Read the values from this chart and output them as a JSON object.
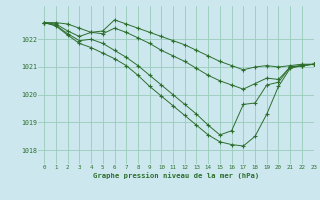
{
  "background_color": "#cce8ee",
  "grid_color": "#99ccbb",
  "line_color": "#2d6e2d",
  "title": "Graphe pression niveau de la mer (hPa)",
  "xlim": [
    -0.5,
    23
  ],
  "ylim": [
    1017.5,
    1023.2
  ],
  "yticks": [
    1018,
    1019,
    1020,
    1021,
    1022
  ],
  "xticks": [
    0,
    1,
    2,
    3,
    4,
    5,
    6,
    7,
    8,
    9,
    10,
    11,
    12,
    13,
    14,
    15,
    16,
    17,
    18,
    19,
    20,
    21,
    22,
    23
  ],
  "line1_x": [
    0,
    1,
    2,
    3,
    4,
    5,
    6,
    7,
    8,
    9,
    10,
    11,
    12,
    13,
    14,
    15,
    16,
    17,
    18,
    19,
    20,
    21,
    22,
    23
  ],
  "line1_y": [
    1022.6,
    1022.6,
    1022.55,
    1022.4,
    1022.25,
    1022.3,
    1022.7,
    1022.55,
    1022.4,
    1022.25,
    1022.1,
    1021.95,
    1021.8,
    1021.6,
    1021.4,
    1021.2,
    1021.05,
    1020.9,
    1021.0,
    1021.05,
    1021.0,
    1021.05,
    1021.1,
    1021.1
  ],
  "line2_x": [
    0,
    1,
    2,
    3,
    4,
    5,
    6,
    7,
    8,
    9,
    10,
    11,
    12,
    13,
    14,
    15,
    16,
    17,
    18,
    19,
    20,
    21,
    22,
    23
  ],
  "line2_y": [
    1022.6,
    1022.55,
    1022.3,
    1022.1,
    1022.25,
    1022.2,
    1022.4,
    1022.25,
    1022.05,
    1021.85,
    1021.6,
    1021.4,
    1021.2,
    1020.95,
    1020.7,
    1020.5,
    1020.35,
    1020.2,
    1020.4,
    1020.6,
    1020.55,
    1021.0,
    1021.05,
    1021.1
  ],
  "line3_x": [
    0,
    1,
    2,
    3,
    4,
    5,
    6,
    7,
    8,
    9,
    10,
    11,
    12,
    13,
    14,
    15,
    16,
    17,
    18,
    19,
    20,
    21,
    22,
    23
  ],
  "line3_y": [
    1022.6,
    1022.5,
    1022.2,
    1021.95,
    1022.0,
    1021.85,
    1021.6,
    1021.35,
    1021.05,
    1020.7,
    1020.35,
    1020.0,
    1019.65,
    1019.3,
    1018.9,
    1018.55,
    1018.7,
    1019.65,
    1019.7,
    1020.35,
    1020.45,
    1021.0,
    1021.05,
    1021.1
  ],
  "line4_x": [
    0,
    1,
    2,
    3,
    4,
    5,
    6,
    7,
    8,
    9,
    10,
    11,
    12,
    13,
    14,
    15,
    16,
    17,
    18,
    19,
    20,
    21,
    22,
    23
  ],
  "line4_y": [
    1022.6,
    1022.48,
    1022.15,
    1021.85,
    1021.7,
    1021.5,
    1021.3,
    1021.05,
    1020.7,
    1020.3,
    1019.95,
    1019.6,
    1019.25,
    1018.9,
    1018.55,
    1018.3,
    1018.2,
    1018.15,
    1018.5,
    1019.3,
    1020.3,
    1020.95,
    1021.05,
    1021.1
  ]
}
